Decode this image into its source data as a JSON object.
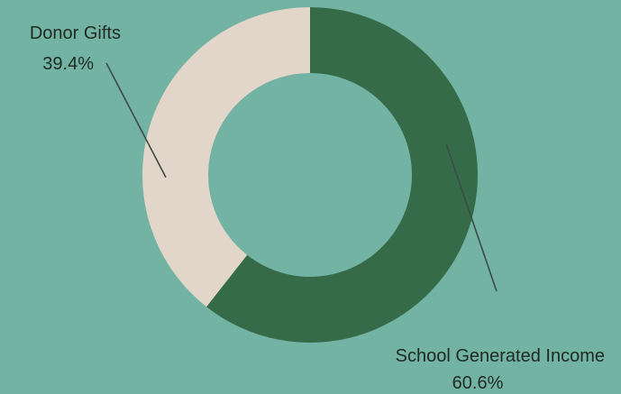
{
  "chart_data": {
    "type": "pie",
    "variant": "donut",
    "title": "",
    "slices": [
      {
        "label": "School Generated Income",
        "value": 60.6,
        "value_label": "60.6%",
        "color": "#356b49"
      },
      {
        "label": "Donor Gifts",
        "value": 39.4,
        "value_label": "39.4%",
        "color": "#e2d5ca"
      }
    ],
    "start_angle": "12 o'clock",
    "direction": "clockwise",
    "label_placement": "outside with leader lines",
    "background_color": "#72b3a3",
    "legend": "none"
  }
}
